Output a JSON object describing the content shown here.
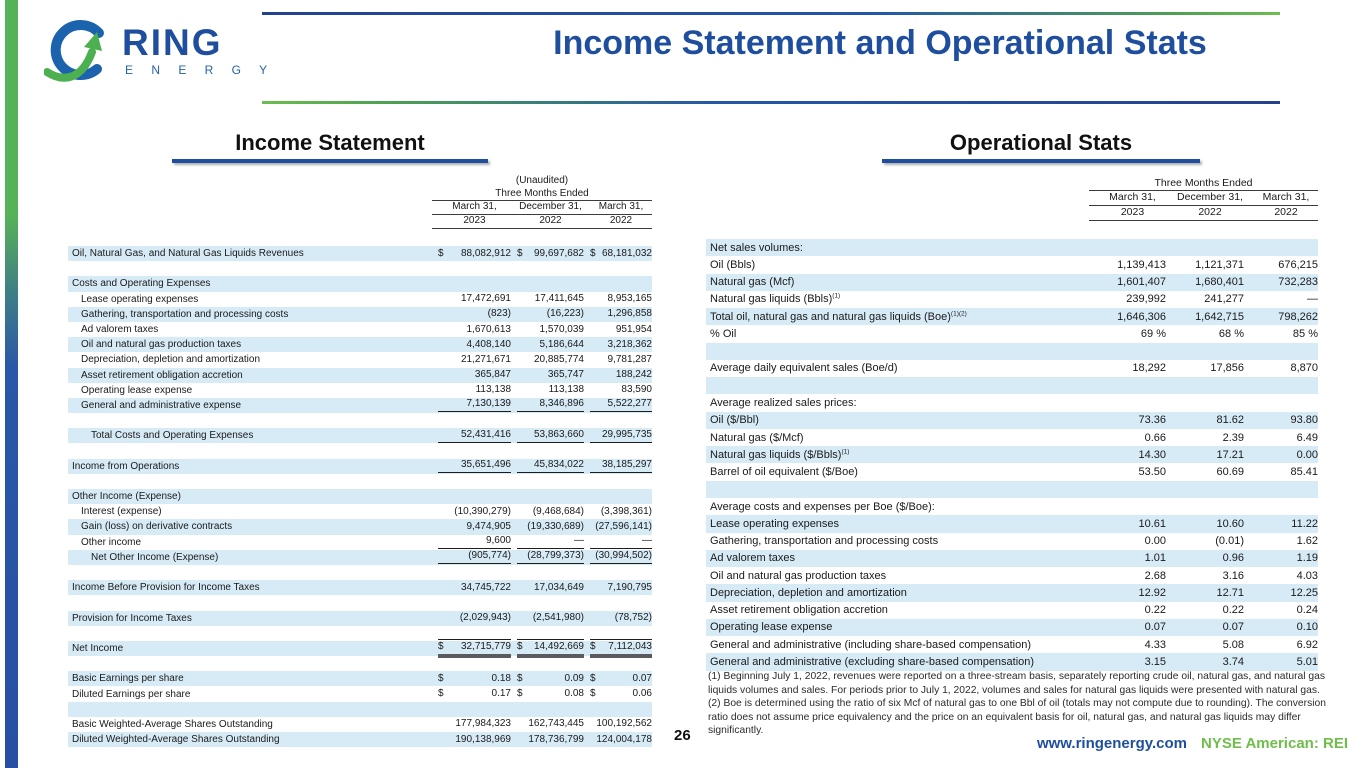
{
  "slide": {
    "title": "Income Statement and Operational Stats",
    "page_number": "26",
    "logo": {
      "brand": "RING",
      "sub": "E N E R G Y"
    },
    "footer": {
      "website": "www.ringenergy.com",
      "ticker": "NYSE American: REI"
    }
  },
  "colors": {
    "accent_blue": "#1f4e9f",
    "accent_green": "#6fbe4b",
    "row_highlight": "#d7ebf7"
  },
  "income_statement": {
    "heading": "Income Statement",
    "header": {
      "unaudited": "(Unaudited)",
      "period": "Three Months Ended",
      "cols": [
        {
          "date": "March 31,",
          "year": "2023"
        },
        {
          "date": "December 31,",
          "year": "2022"
        },
        {
          "date": "March 31,",
          "year": "2022"
        }
      ]
    },
    "rows": [
      {
        "label": "Oil, Natural Gas, and Natural Gas Liquids Revenues",
        "bg": "b",
        "dollar": true,
        "values": [
          "88,082,912",
          "99,697,682",
          "68,181,032"
        ]
      },
      {
        "empty": true,
        "bg": "w"
      },
      {
        "label": "Costs and Operating Expenses",
        "bg": "b",
        "values": [
          "",
          "",
          ""
        ]
      },
      {
        "label": "Lease operating expenses",
        "indent": 1,
        "bg": "w",
        "values": [
          "17,472,691",
          "17,411,645",
          "8,953,165"
        ]
      },
      {
        "label": "Gathering, transportation and processing costs",
        "indent": 1,
        "bg": "b",
        "values": [
          "(823)",
          "(16,223)",
          "1,296,858"
        ]
      },
      {
        "label": "Ad valorem taxes",
        "indent": 1,
        "bg": "w",
        "values": [
          "1,670,613",
          "1,570,039",
          "951,954"
        ]
      },
      {
        "label": "Oil and natural gas production taxes",
        "indent": 1,
        "bg": "b",
        "values": [
          "4,408,140",
          "5,186,644",
          "3,218,362"
        ]
      },
      {
        "label": "Depreciation, depletion and amortization",
        "indent": 1,
        "bg": "w",
        "values": [
          "21,271,671",
          "20,885,774",
          "9,781,287"
        ]
      },
      {
        "label": "Asset retirement obligation accretion",
        "indent": 1,
        "bg": "b",
        "values": [
          "365,847",
          "365,747",
          "188,242"
        ]
      },
      {
        "label": "Operating lease expense",
        "indent": 1,
        "bg": "w",
        "values": [
          "113,138",
          "113,138",
          "83,590"
        ]
      },
      {
        "label": "General and administrative expense",
        "indent": 1,
        "bg": "b",
        "rule": "u",
        "values": [
          "7,130,139",
          "8,346,896",
          "5,522,277"
        ]
      },
      {
        "empty": true,
        "bg": "w"
      },
      {
        "label": "Total Costs and Operating Expenses",
        "indent": 2,
        "bg": "b",
        "rule": "u",
        "values": [
          "52,431,416",
          "53,863,660",
          "29,995,735"
        ]
      },
      {
        "empty": true,
        "bg": "w"
      },
      {
        "label": "Income from Operations",
        "bg": "b",
        "rule": "u",
        "values": [
          "35,651,496",
          "45,834,022",
          "38,185,297"
        ]
      },
      {
        "empty": true,
        "bg": "w"
      },
      {
        "label": "Other Income (Expense)",
        "bg": "b",
        "values": [
          "",
          "",
          ""
        ]
      },
      {
        "label": "Interest (expense)",
        "indent": 1,
        "bg": "w",
        "values": [
          "(10,390,279)",
          "(9,468,684)",
          "(3,398,361)"
        ]
      },
      {
        "label": "Gain (loss) on derivative contracts",
        "indent": 1,
        "bg": "b",
        "values": [
          "9,474,905",
          "(19,330,689)",
          "(27,596,141)"
        ]
      },
      {
        "label": "Other income",
        "indent": 1,
        "bg": "w",
        "rule": "u",
        "values": [
          "9,600",
          "—",
          "—"
        ]
      },
      {
        "label": "Net Other Income (Expense)",
        "indent": 2,
        "bg": "b",
        "rule": "u",
        "values": [
          "(905,774)",
          "(28,799,373)",
          "(30,994,502)"
        ]
      },
      {
        "empty": true,
        "bg": "w"
      },
      {
        "label": "Income Before Provision for Income Taxes",
        "bg": "b",
        "values": [
          "34,745,722",
          "17,034,649",
          "7,190,795"
        ]
      },
      {
        "empty": true,
        "bg": "w"
      },
      {
        "label": "Provision for Income Taxes",
        "bg": "b",
        "values": [
          "(2,029,943)",
          "(2,541,980)",
          "(78,752)"
        ]
      },
      {
        "empty": true,
        "bg": "w"
      },
      {
        "label": "Net Income",
        "bg": "b",
        "dollar": true,
        "rule": "nd",
        "values": [
          "32,715,779",
          "14,492,669",
          "7,112,043"
        ]
      },
      {
        "empty": true,
        "bg": "w"
      },
      {
        "label": "Basic Earnings per share",
        "bg": "b",
        "dollar": true,
        "values": [
          "0.18",
          "0.09",
          "0.07"
        ]
      },
      {
        "label": "Diluted Earnings per share",
        "bg": "w",
        "dollar": true,
        "values": [
          "0.17",
          "0.08",
          "0.06"
        ]
      },
      {
        "empty": true,
        "bg": "b"
      },
      {
        "label": "Basic Weighted-Average Shares Outstanding",
        "bg": "w",
        "values": [
          "177,984,323",
          "162,743,445",
          "100,192,562"
        ]
      },
      {
        "label": "Diluted Weighted-Average Shares Outstanding",
        "bg": "b",
        "values": [
          "190,138,969",
          "178,736,799",
          "124,004,178"
        ]
      }
    ]
  },
  "operational_stats": {
    "heading": "Operational Stats",
    "header": {
      "period": "Three Months Ended",
      "cols": [
        {
          "date": "March 31,",
          "year": "2023"
        },
        {
          "date": "December 31,",
          "year": "2022"
        },
        {
          "date": "March 31,",
          "year": "2022"
        }
      ]
    },
    "rows": [
      {
        "label": "Net sales volumes:",
        "bg": "b",
        "values": [
          "",
          "",
          ""
        ]
      },
      {
        "label": "Oil (Bbls)",
        "bg": "w",
        "values": [
          "1,139,413",
          "1,121,371",
          "676,215"
        ]
      },
      {
        "label": "Natural gas (Mcf)",
        "bg": "b",
        "values": [
          "1,601,407",
          "1,680,401",
          "732,283"
        ]
      },
      {
        "label": "Natural gas liquids (Bbls)",
        "sup": "(1)",
        "bg": "w",
        "values": [
          "239,992",
          "241,277",
          "—"
        ]
      },
      {
        "label": "Total oil, natural gas and natural gas liquids (Boe)",
        "sup": "(1)(2)",
        "bg": "b",
        "values": [
          "1,646,306",
          "1,642,715",
          "798,262"
        ]
      },
      {
        "label": "% Oil",
        "bg": "w",
        "values": [
          "69 %",
          "68 %",
          "85 %"
        ]
      },
      {
        "empty": true,
        "bg": "b"
      },
      {
        "label": "Average daily equivalent sales (Boe/d)",
        "bg": "w",
        "values": [
          "18,292",
          "17,856",
          "8,870"
        ]
      },
      {
        "empty": true,
        "bg": "b"
      },
      {
        "label": "Average realized sales prices:",
        "bg": "w",
        "values": [
          "",
          "",
          ""
        ]
      },
      {
        "label": "Oil ($/Bbl)",
        "bg": "b",
        "values": [
          "73.36",
          "81.62",
          "93.80"
        ]
      },
      {
        "label": "Natural gas ($/Mcf)",
        "bg": "w",
        "values": [
          "0.66",
          "2.39",
          "6.49"
        ]
      },
      {
        "label": "Natural gas liquids ($/Bbls)",
        "sup": "(1)",
        "bg": "b",
        "values": [
          "14.30",
          "17.21",
          "0.00"
        ]
      },
      {
        "label": "Barrel of oil equivalent ($/Boe)",
        "bg": "w",
        "values": [
          "53.50",
          "60.69",
          "85.41"
        ]
      },
      {
        "empty": true,
        "bg": "b"
      },
      {
        "label": "Average costs and expenses per Boe ($/Boe):",
        "bg": "w",
        "values": [
          "",
          "",
          ""
        ]
      },
      {
        "label": "Lease operating expenses",
        "bg": "b",
        "values": [
          "10.61",
          "10.60",
          "11.22"
        ]
      },
      {
        "label": "Gathering, transportation and processing costs",
        "bg": "w",
        "values": [
          "0.00",
          "(0.01)",
          "1.62"
        ]
      },
      {
        "label": "Ad valorem taxes",
        "bg": "b",
        "values": [
          "1.01",
          "0.96",
          "1.19"
        ]
      },
      {
        "label": "Oil and natural gas production taxes",
        "bg": "w",
        "values": [
          "2.68",
          "3.16",
          "4.03"
        ]
      },
      {
        "label": "Depreciation, depletion and amortization",
        "bg": "b",
        "values": [
          "12.92",
          "12.71",
          "12.25"
        ]
      },
      {
        "label": "Asset retirement obligation accretion",
        "bg": "w",
        "values": [
          "0.22",
          "0.22",
          "0.24"
        ]
      },
      {
        "label": "Operating lease expense",
        "bg": "b",
        "values": [
          "0.07",
          "0.07",
          "0.10"
        ]
      },
      {
        "label": "General and administrative (including share-based compensation)",
        "bg": "w",
        "values": [
          "4.33",
          "5.08",
          "6.92"
        ]
      },
      {
        "label": "General and administrative (excluding share-based compensation)",
        "bg": "b",
        "values": [
          "3.15",
          "3.74",
          "5.01"
        ]
      }
    ]
  },
  "footnotes": [
    "(1) Beginning July 1, 2022, revenues were reported on a three-stream basis, separately reporting crude oil, natural gas, and natural gas liquids volumes and sales. For periods prior to July 1, 2022, volumes and sales for natural gas liquids were presented with natural gas.",
    "(2) Boe is determined using the ratio of six Mcf of natural gas to one Bbl of oil (totals may not compute due to rounding).  The conversion ratio does not assume price equivalency and the price on an equivalent basis for oil, natural gas, and natural gas liquids may differ significantly."
  ]
}
